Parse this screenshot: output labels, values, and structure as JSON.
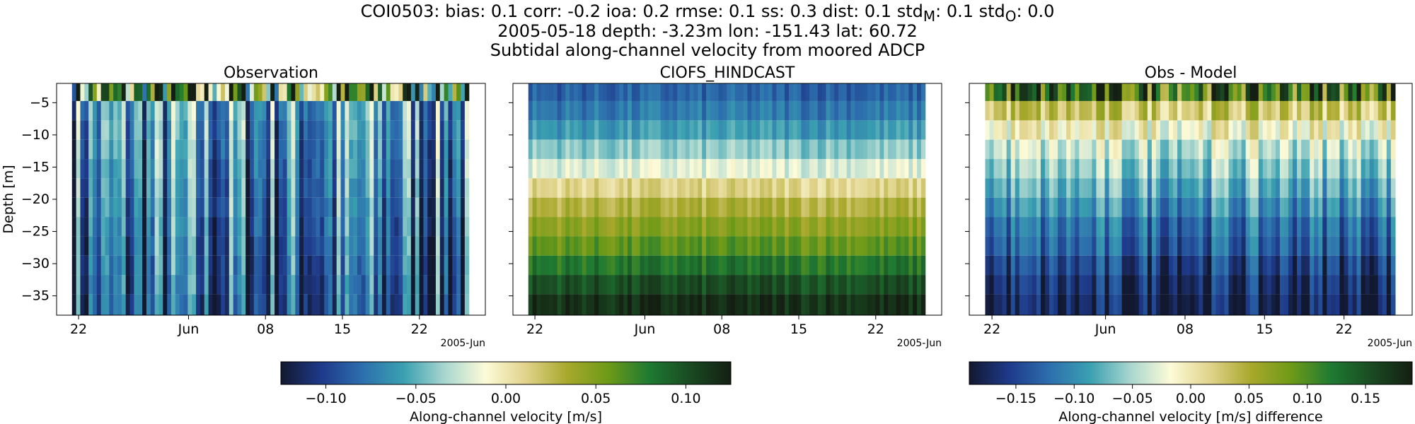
{
  "header": {
    "stats_html": "COI0503: bias: 0.1  corr: -0.2  ioa: 0.2  rmse: 0.1  ss: 0.3  dist: 0.1  std<sub>M</sub>: 0.1  std<sub>O</sub>: 0.0",
    "meta": "2005-05-18 depth: -3.23m lon: -151.43 lat: 60.72",
    "subtitle": "Subtidal along-channel velocity from moored ADCP"
  },
  "colors": {
    "colormap_delta": [
      "#121830",
      "#1e3a8a",
      "#2d6fae",
      "#3aa0b0",
      "#a8d6cf",
      "#fdfbd8",
      "#e0d28a",
      "#a8a82c",
      "#6e9a18",
      "#1e7a32",
      "#1a4a22",
      "#141e12"
    ]
  },
  "chart_data": [
    {
      "type": "heatmap",
      "title": "Observation",
      "ylabel": "Depth [m]",
      "xticks": [
        "22",
        "Jun",
        "08",
        "15",
        "22"
      ],
      "xtick_dates": [
        "2005-05-22",
        "2005-06-01",
        "2005-06-08",
        "2005-06-15",
        "2005-06-22"
      ],
      "x_offset_label": "2005-Jun",
      "xlim": [
        "2005-05-20",
        "2005-06-28"
      ],
      "ylim": [
        -38,
        -2
      ],
      "yticks": [
        -5,
        -10,
        -15,
        -20,
        -25,
        -30,
        -35
      ],
      "depth_bins": [
        -3.23,
        -6.25,
        -9.25,
        -12.25,
        -15.25,
        -18.25,
        -21.25,
        -24.25,
        -27.25,
        -30.25,
        -33.25,
        -36.25
      ],
      "colorbar": "obs_model",
      "values_description_note": null
    },
    {
      "type": "heatmap",
      "title": "CIOFS_HINDCAST",
      "xticks": [
        "22",
        "Jun",
        "08",
        "15",
        "22"
      ],
      "xtick_dates": [
        "2005-05-22",
        "2005-06-01",
        "2005-06-08",
        "2005-06-15",
        "2005-06-22"
      ],
      "x_offset_label": "2005-Jun",
      "xlim": [
        "2005-05-20",
        "2005-06-28"
      ],
      "ylim": [
        -38,
        -2
      ],
      "depth_bins": [
        -3.23,
        -6.25,
        -9.25,
        -12.25,
        -15.25,
        -18.25,
        -21.25,
        -24.25,
        -27.25,
        -30.25,
        -33.25,
        -36.25
      ],
      "depth_mean_velocity": [
        -0.085,
        -0.075,
        -0.06,
        -0.04,
        -0.02,
        0.01,
        0.03,
        0.045,
        0.06,
        0.08,
        0.1,
        0.115
      ],
      "colorbar": "obs_model"
    },
    {
      "type": "heatmap",
      "title": "Obs - Model",
      "xticks": [
        "22",
        "Jun",
        "08",
        "15",
        "22"
      ],
      "xtick_dates": [
        "2005-05-22",
        "2005-06-01",
        "2005-06-08",
        "2005-06-15",
        "2005-06-22"
      ],
      "x_offset_label": "2005-Jun",
      "xlim": [
        "2005-05-20",
        "2005-06-28"
      ],
      "ylim": [
        -38,
        -2
      ],
      "depth_bins": [
        -3.23,
        -6.25,
        -9.25,
        -12.25,
        -15.25,
        -18.25,
        -21.25,
        -24.25,
        -27.25,
        -30.25,
        -33.25,
        -36.25
      ],
      "depth_mean_velocity": [
        0.12,
        0.03,
        -0.01,
        -0.04,
        -0.06,
        -0.08,
        -0.1,
        -0.12,
        -0.13,
        -0.15,
        -0.165,
        -0.175
      ],
      "colorbar": "difference"
    }
  ],
  "colorbars": [
    {
      "id": "obs_model",
      "label": "Along-channel velocity [m/s]",
      "range": [
        -0.125,
        0.125
      ],
      "ticks": [
        -0.1,
        -0.05,
        0.0,
        0.05,
        0.1
      ],
      "tick_labels": [
        "−0.10",
        "−0.05",
        "0.00",
        "0.05",
        "0.10"
      ]
    },
    {
      "id": "difference",
      "label": "Along-channel velocity [m/s] difference",
      "range": [
        -0.19,
        0.19
      ],
      "ticks": [
        -0.15,
        -0.1,
        -0.05,
        0.0,
        0.05,
        0.1,
        0.15
      ],
      "tick_labels": [
        "−0.15",
        "−0.10",
        "−0.05",
        "0.00",
        "0.05",
        "0.10",
        "0.15"
      ]
    }
  ]
}
